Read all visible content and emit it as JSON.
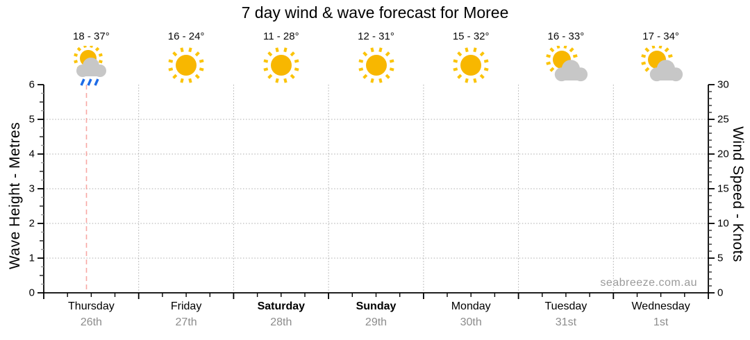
{
  "page_title": "7 day wind & wave forecast for Moree",
  "watermark": "seabreeze.com.au",
  "days": [
    {
      "name": "Thursday",
      "date": "26th",
      "temp_label": "18 - 37°",
      "temp_min_c": 18,
      "temp_max_c": 37,
      "icon": "sun-rain",
      "bold": false
    },
    {
      "name": "Friday",
      "date": "27th",
      "temp_label": "16 - 24°",
      "temp_min_c": 16,
      "temp_max_c": 24,
      "icon": "sun",
      "bold": false
    },
    {
      "name": "Saturday",
      "date": "28th",
      "temp_label": "11 - 28°",
      "temp_min_c": 11,
      "temp_max_c": 28,
      "icon": "sun",
      "bold": true
    },
    {
      "name": "Sunday",
      "date": "29th",
      "temp_label": "12 - 31°",
      "temp_min_c": 12,
      "temp_max_c": 31,
      "icon": "sun",
      "bold": true
    },
    {
      "name": "Monday",
      "date": "30th",
      "temp_label": "15 - 32°",
      "temp_min_c": 15,
      "temp_max_c": 32,
      "icon": "sun",
      "bold": false
    },
    {
      "name": "Tuesday",
      "date": "31st",
      "temp_label": "16 - 33°",
      "temp_min_c": 16,
      "temp_max_c": 33,
      "icon": "sun-cloud",
      "bold": false
    },
    {
      "name": "Wednesday",
      "date": "1st",
      "temp_label": "17 - 34°",
      "temp_min_c": 17,
      "temp_max_c": 34,
      "icon": "sun-cloud",
      "bold": false
    }
  ],
  "axes": {
    "left_title": "Wave Height - Metres",
    "right_title": "Wind Speed - Knots"
  },
  "chart_data": {
    "type": "line",
    "title": "7 day wind & wave forecast for Moree",
    "categories": [
      "Thursday 26th",
      "Friday 27th",
      "Saturday 28th",
      "Sunday 29th",
      "Monday 30th",
      "Tuesday 31st",
      "Wednesday 1st"
    ],
    "y_left": {
      "label": "Wave Height - Metres",
      "min": 0,
      "max": 6,
      "major_ticks": [
        0,
        1,
        2,
        3,
        4,
        5,
        6
      ],
      "half_tick_step": 0.5,
      "quarter_tick_step": 0.25
    },
    "y_right": {
      "label": "Wind Speed - Knots",
      "min": 0,
      "max": 30,
      "major_ticks": [
        0,
        5,
        10,
        15,
        20,
        25,
        30
      ],
      "minor_step": 1
    },
    "series": [
      {
        "name": "Wave Height",
        "axis": "left",
        "values": [
          null,
          null,
          null,
          null,
          null,
          null,
          null
        ]
      },
      {
        "name": "Wind Speed",
        "axis": "right",
        "values": [
          null,
          null,
          null,
          null,
          null,
          null,
          null
        ]
      }
    ],
    "no_data_plotted": true,
    "grid": true,
    "legend_position": "none",
    "x_minor_ticks_per_day": 3,
    "now_marker": {
      "day_index": 0,
      "fraction": 0.45
    },
    "annotations": {
      "temp_ranges_c": [
        [
          18,
          37
        ],
        [
          16,
          24
        ],
        [
          11,
          28
        ],
        [
          12,
          31
        ],
        [
          15,
          32
        ],
        [
          16,
          33
        ],
        [
          17,
          34
        ]
      ],
      "weather_icons": [
        "sun-rain",
        "sun",
        "sun",
        "sun",
        "sun",
        "sun-cloud",
        "sun-cloud"
      ]
    }
  },
  "colors": {
    "sun": "#F8B700",
    "sun_rays": "#FBC40A",
    "cloud": "#C7C7C7",
    "rain": "#1E6BE6",
    "now_line": "#F8A8A4",
    "grid": "#ABABAB",
    "axis": "#000000",
    "half_tick": "#333333",
    "quarter_tick": "#999999",
    "date_text": "#8C8C8C",
    "watermark_text": "#9A9A9A",
    "title_text": "#000000"
  }
}
